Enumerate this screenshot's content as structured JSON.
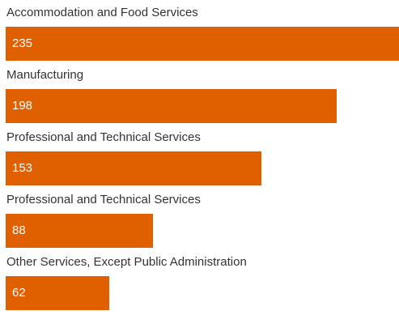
{
  "chart_data": {
    "type": "bar",
    "orientation": "horizontal",
    "categories": [
      "Accommodation and Food Services",
      "Manufacturing",
      "Professional and Technical Services",
      "Professional and Technical Services",
      "Other Services, Except Public Administration"
    ],
    "values": [
      235,
      198,
      153,
      88,
      62
    ],
    "value_labels": [
      "235",
      "198",
      "153",
      "88",
      "62"
    ],
    "xlim": [
      0,
      235
    ],
    "grid": false,
    "bar_color": "#e06000"
  }
}
